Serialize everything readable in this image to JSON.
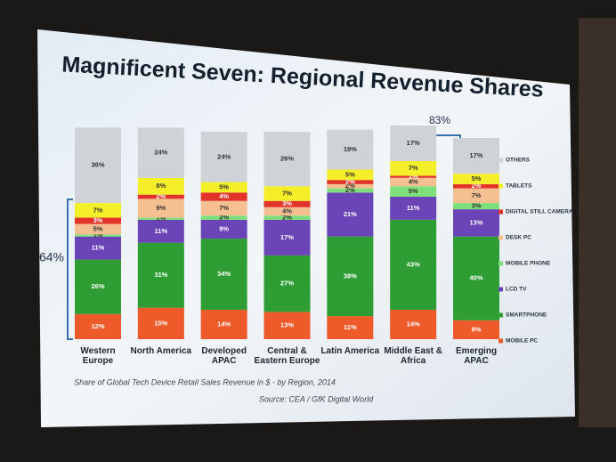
{
  "chart_data": {
    "type": "bar",
    "stacked": true,
    "title": "Magnificent Seven: Regional Revenue Shares",
    "subtitle": "Share of Global Tech Device Retail Sales Revenue in $ - by Region, 2014",
    "source": "Source: CEA / GfK Digital World",
    "annotations": [
      "64%",
      "83%"
    ],
    "categories": [
      "Western Europe",
      "North America",
      "Developed APAC",
      "Central & Eastern Europe",
      "Latin America",
      "Middle East & Africa",
      "Emerging APAC"
    ],
    "series": [
      {
        "name": "MOBILE PC",
        "color": "#ee5a2a",
        "values": [
          12,
          15,
          14,
          13,
          11,
          14,
          9
        ],
        "value_labels": [
          "12%",
          "15%",
          "14%",
          "13%",
          "11%",
          "14%",
          "9%"
        ]
      },
      {
        "name": "SMARTPHONE",
        "color": "#2e9e34",
        "values": [
          26,
          31,
          34,
          27,
          38,
          43,
          40
        ],
        "value_labels": [
          "26%",
          "31%",
          "34%",
          "27%",
          "38%",
          "43%",
          "40%"
        ]
      },
      {
        "name": "LCD TV",
        "color": "#6b45b8",
        "values": [
          11,
          11,
          9,
          17,
          21,
          11,
          13
        ],
        "value_labels": [
          "11%",
          "11%",
          "9%",
          "17%",
          "21%",
          "11%",
          "13%"
        ]
      },
      {
        "name": "MOBILE PHONE",
        "color": "#7ee07a",
        "values": [
          1,
          1,
          2,
          2,
          2,
          5,
          3
        ],
        "value_labels": [
          "1%",
          "1%",
          "2%",
          "2%",
          "2%",
          "5%",
          "3%"
        ]
      },
      {
        "name": "DESK PC",
        "color": "#f6bf92",
        "values": [
          5,
          9,
          7,
          4,
          2,
          4,
          7
        ],
        "value_labels": [
          "5%",
          "9%",
          "7%",
          "4%",
          "2%",
          "4%",
          "7%"
        ]
      },
      {
        "name": "DIGITAL STILL CAMERA",
        "color": "#e2332a",
        "values": [
          3,
          2,
          4,
          3,
          2,
          1,
          2
        ],
        "value_labels": [
          "3%",
          "2%",
          "4%",
          "3%",
          "2%",
          "1%",
          "2%"
        ]
      },
      {
        "name": "TABLETS",
        "color": "#f5ef2a",
        "values": [
          7,
          8,
          5,
          7,
          5,
          7,
          5
        ],
        "value_labels": [
          "7%",
          "8%",
          "5%",
          "7%",
          "5%",
          "7%",
          "5%"
        ]
      },
      {
        "name": "OTHERS",
        "color": "#cfd2d6",
        "values": [
          36,
          24,
          24,
          26,
          19,
          17,
          17
        ],
        "value_labels": [
          "36%",
          "24%",
          "24%",
          "26%",
          "19%",
          "17%",
          "17%"
        ]
      }
    ]
  }
}
